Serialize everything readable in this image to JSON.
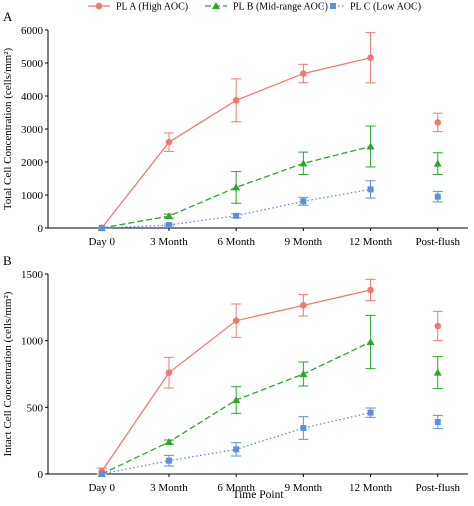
{
  "legend": {
    "position": "top",
    "entries": [
      {
        "label": "PL A (High AOC)",
        "color": "#f07a6e",
        "marker": "circle",
        "dash": "solid"
      },
      {
        "label": "PL B (Mid-range AOC)",
        "color": "#2aa82a",
        "marker": "triangle",
        "dash": "dashed"
      },
      {
        "label": "PL C (Low AOC)",
        "color": "#5b8fe0",
        "marker": "square",
        "dash": "dotted"
      }
    ]
  },
  "xlabel": "Time Point",
  "chart_data": [
    {
      "type": "line",
      "panel_label": "A",
      "title": "",
      "ylabel": "Total Cell Concentration (cells/mm²)",
      "xlabel": "",
      "categories": [
        "Day 0",
        "3 Month",
        "6 Month",
        "9 Month",
        "12 Month",
        "Post-flush"
      ],
      "ylim": [
        0,
        6000
      ],
      "yticks": [
        "0",
        "1000",
        "2000",
        "3000",
        "4000",
        "5000",
        "6000"
      ],
      "grid": false,
      "series": [
        {
          "name": "PL A (High AOC)",
          "values": [
            0,
            2600,
            3870,
            4680,
            5160,
            3200
          ],
          "errors": [
            0,
            280,
            650,
            280,
            760,
            280
          ]
        },
        {
          "name": "PL B (Mid-range AOC)",
          "values": [
            0,
            360,
            1230,
            1960,
            2470,
            1950
          ],
          "errors": [
            0,
            60,
            480,
            340,
            620,
            330
          ]
        },
        {
          "name": "PL C (Low AOC)",
          "values": [
            0,
            90,
            370,
            810,
            1170,
            950
          ],
          "errors": [
            0,
            30,
            60,
            120,
            260,
            160
          ]
        }
      ]
    },
    {
      "type": "line",
      "panel_label": "B",
      "title": "",
      "ylabel": "Intact Cell Concentration (cells/mm²)",
      "xlabel": "Time Point",
      "categories": [
        "Day 0",
        "3 Month",
        "6 Month",
        "9 Month",
        "12 Month",
        "Post-flush"
      ],
      "ylim": [
        0,
        1500
      ],
      "yticks": [
        "0",
        "500",
        "1000",
        "1500"
      ],
      "grid": false,
      "series": [
        {
          "name": "PL A (High AOC)",
          "values": [
            20,
            760,
            1150,
            1265,
            1380,
            1110
          ],
          "errors": [
            25,
            115,
            125,
            80,
            80,
            110
          ]
        },
        {
          "name": "PL B (Mid-range AOC)",
          "values": [
            0,
            240,
            555,
            750,
            990,
            760
          ],
          "errors": [
            0,
            15,
            100,
            90,
            200,
            120
          ]
        },
        {
          "name": "PL C (Low AOC)",
          "values": [
            0,
            100,
            185,
            345,
            460,
            390
          ],
          "errors": [
            0,
            40,
            50,
            85,
            35,
            50
          ]
        }
      ]
    }
  ]
}
